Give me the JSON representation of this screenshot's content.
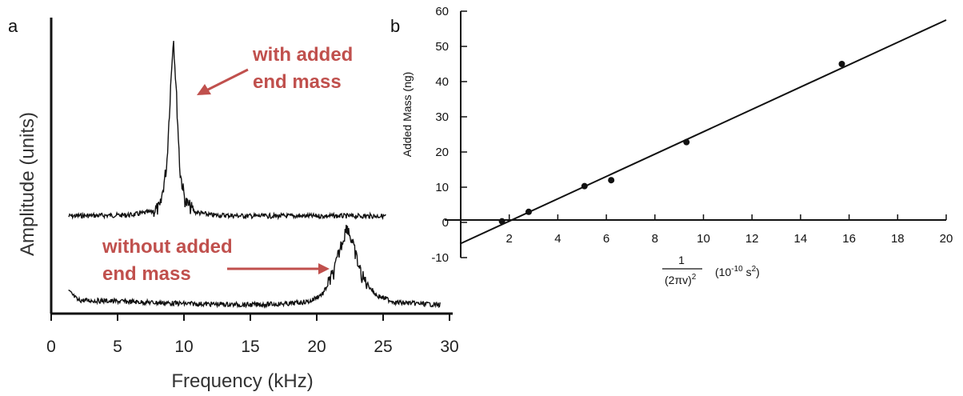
{
  "colors": {
    "annotation": "#c0504d",
    "trace": "#111111"
  },
  "chart_data": [
    {
      "panel": "a",
      "type": "line",
      "xlabel": "Frequency (kHz)",
      "ylabel": "Amplitude (units)",
      "xlim": [
        0,
        30
      ],
      "xticks": [
        "0",
        "5",
        "10",
        "15",
        "20",
        "25",
        "30"
      ],
      "grid": false,
      "series": [
        {
          "annotation": [
            "with added",
            "end mass"
          ],
          "x_range": [
            1.3,
            25.2
          ],
          "peak_x": 9.2,
          "baseline": 0.1,
          "peak": 1.0,
          "x": [
            1.3,
            6,
            7.5,
            8.2,
            8.7,
            9.0,
            9.2,
            9.4,
            9.7,
            10.1,
            10.8,
            12,
            15,
            20,
            25.2
          ],
          "y": [
            0.1,
            0.105,
            0.12,
            0.14,
            0.35,
            0.75,
            1.0,
            0.75,
            0.32,
            0.17,
            0.12,
            0.105,
            0.1,
            0.1,
            0.1
          ]
        },
        {
          "annotation": [
            "without added",
            "end mass"
          ],
          "x_range": [
            1.3,
            29.3
          ],
          "peak_x": 22.3,
          "baseline": 0.08,
          "peak": 0.42,
          "x": [
            1.3,
            2.0,
            5,
            10,
            15,
            18,
            19.5,
            20.5,
            21.3,
            21.8,
            22.3,
            22.8,
            23.4,
            24.5,
            26,
            29.3
          ],
          "y": [
            0.14,
            0.1,
            0.095,
            0.085,
            0.08,
            0.085,
            0.095,
            0.13,
            0.22,
            0.33,
            0.42,
            0.32,
            0.2,
            0.12,
            0.09,
            0.08
          ]
        }
      ]
    },
    {
      "panel": "b",
      "type": "scatter",
      "xlabel": "1 / (2πν)²  (10⁻¹⁰ s²)",
      "xlabel_parts": {
        "numerator": "1",
        "denominator": "(2πv)",
        "denominator_sup": "2",
        "unit": "(10",
        "unit_sup": "-10",
        "unit_end": " s",
        "unit_end_sup": "2",
        "unit_close": ")"
      },
      "ylabel": "Added Mass (ng)",
      "xlim": [
        0,
        20
      ],
      "ylim": [
        -10,
        60
      ],
      "xticks": [
        "2",
        "4",
        "6",
        "8",
        "10",
        "12",
        "14",
        "16",
        "18",
        "20"
      ],
      "yticks": [
        "-10",
        "0",
        "10",
        "20",
        "30",
        "40",
        "50",
        "60"
      ],
      "grid": false,
      "points": [
        {
          "x": 1.7,
          "y": 0.3
        },
        {
          "x": 2.8,
          "y": 3.0
        },
        {
          "x": 5.1,
          "y": 10.3
        },
        {
          "x": 6.2,
          "y": 12.0
        },
        {
          "x": 9.3,
          "y": 22.8
        },
        {
          "x": 15.7,
          "y": 45.0
        }
      ],
      "fit_line": {
        "x": [
          0,
          20
        ],
        "y": [
          -6.0,
          57.5
        ]
      }
    }
  ]
}
